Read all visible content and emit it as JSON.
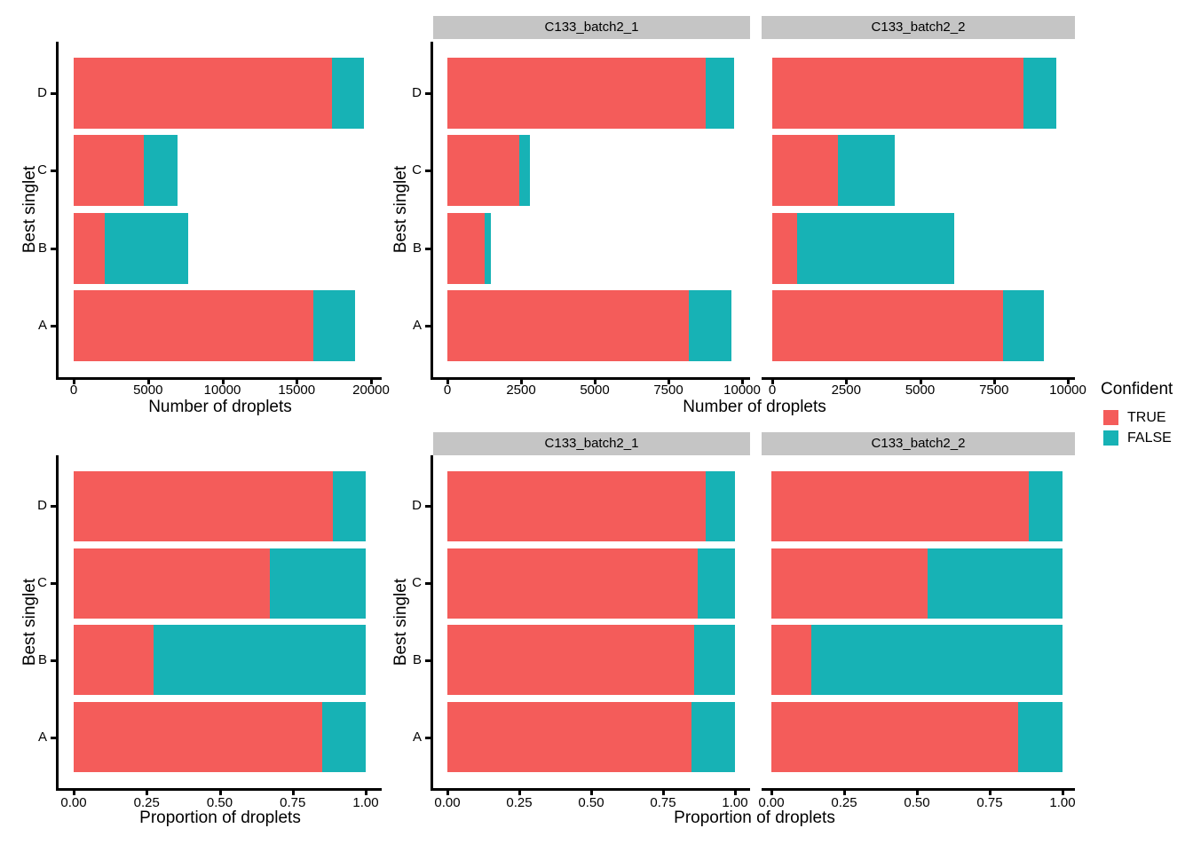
{
  "figure": {
    "legend": {
      "title": "Confident",
      "items": [
        {
          "label": "TRUE",
          "color": "#F45C5A"
        },
        {
          "label": "FALSE",
          "color": "#17B2B5"
        }
      ]
    },
    "colors": {
      "confident_true": "#F45C5A",
      "confident_false": "#17B2B5",
      "facet_strip_bg": "#C5C5C5",
      "axis_line": "#000000",
      "text": "#000000"
    }
  },
  "chart_data": [
    {
      "id": "counts_all",
      "type": "bar",
      "orientation": "horizontal",
      "stacked": true,
      "facet_label": null,
      "xlabel": "Number of droplets",
      "ylabel": "Best singlet",
      "categories": [
        "A",
        "B",
        "C",
        "D"
      ],
      "category_order_top_to_bottom": [
        "D",
        "C",
        "B",
        "A"
      ],
      "series": [
        {
          "name": "TRUE",
          "values": [
            16100,
            2100,
            4700,
            17350
          ]
        },
        {
          "name": "FALSE",
          "values": [
            2850,
            5600,
            2300,
            2200
          ]
        }
      ],
      "xlim": [
        0,
        20000
      ],
      "xticks": [
        0,
        5000,
        10000,
        15000,
        20000
      ],
      "xtick_labels": [
        "0",
        "5000",
        "10000",
        "15000",
        "20000"
      ],
      "grid": false,
      "legend_title": "Confident"
    },
    {
      "id": "counts_C133_batch2_1",
      "type": "bar",
      "orientation": "horizontal",
      "stacked": true,
      "facet_label": "C133_batch2_1",
      "xlabel": "Number of droplets",
      "ylabel": "Best singlet",
      "categories": [
        "A",
        "B",
        "C",
        "D"
      ],
      "category_order_top_to_bottom": [
        "D",
        "C",
        "B",
        "A"
      ],
      "series": [
        {
          "name": "TRUE",
          "values": [
            8200,
            1270,
            2430,
            8760
          ]
        },
        {
          "name": "FALSE",
          "values": [
            1450,
            210,
            360,
            980
          ]
        }
      ],
      "xlim": [
        0,
        10000
      ],
      "xticks": [
        0,
        2500,
        5000,
        7500,
        10000
      ],
      "xtick_labels": [
        "0",
        "2500",
        "5000",
        "7500",
        "10000"
      ],
      "grid": false,
      "legend_title": "Confident"
    },
    {
      "id": "counts_C133_batch2_2",
      "type": "bar",
      "orientation": "horizontal",
      "stacked": true,
      "facet_label": "C133_batch2_2",
      "xlabel": "Number of droplets",
      "ylabel": null,
      "categories": [
        "A",
        "B",
        "C",
        "D"
      ],
      "category_order_top_to_bottom": [
        "D",
        "C",
        "B",
        "A"
      ],
      "series": [
        {
          "name": "TRUE",
          "values": [
            7800,
            850,
            2230,
            8500
          ]
        },
        {
          "name": "FALSE",
          "values": [
            1400,
            5300,
            1920,
            1100
          ]
        }
      ],
      "xlim": [
        0,
        10000
      ],
      "xticks": [
        0,
        2500,
        5000,
        7500,
        10000
      ],
      "xtick_labels": [
        "0",
        "2500",
        "5000",
        "7500",
        "10000"
      ],
      "grid": false,
      "legend_title": "Confident"
    },
    {
      "id": "proportions_all",
      "type": "bar",
      "orientation": "horizontal",
      "stacked": true,
      "facet_label": null,
      "xlabel": "Proportion of droplets",
      "ylabel": "Best singlet",
      "categories": [
        "A",
        "B",
        "C",
        "D"
      ],
      "category_order_top_to_bottom": [
        "D",
        "C",
        "B",
        "A"
      ],
      "series": [
        {
          "name": "TRUE",
          "values": [
            0.85,
            0.273,
            0.671,
            0.888
          ]
        },
        {
          "name": "FALSE",
          "values": [
            0.15,
            0.727,
            0.329,
            0.112
          ]
        }
      ],
      "xlim": [
        0,
        1
      ],
      "xticks": [
        0,
        0.25,
        0.5,
        0.75,
        1
      ],
      "xtick_labels": [
        "0.00",
        "0.25",
        "0.50",
        "0.75",
        "1.00"
      ],
      "grid": false,
      "legend_title": "Confident"
    },
    {
      "id": "proportions_C133_batch2_1",
      "type": "bar",
      "orientation": "horizontal",
      "stacked": true,
      "facet_label": "C133_batch2_1",
      "xlabel": "Proportion of droplets",
      "ylabel": "Best singlet",
      "categories": [
        "A",
        "B",
        "C",
        "D"
      ],
      "category_order_top_to_bottom": [
        "D",
        "C",
        "B",
        "A"
      ],
      "series": [
        {
          "name": "TRUE",
          "values": [
            0.85,
            0.858,
            0.871,
            0.899
          ]
        },
        {
          "name": "FALSE",
          "values": [
            0.15,
            0.142,
            0.129,
            0.101
          ]
        }
      ],
      "xlim": [
        0,
        1
      ],
      "xticks": [
        0,
        0.25,
        0.5,
        0.75,
        1
      ],
      "xtick_labels": [
        "0.00",
        "0.25",
        "0.50",
        "0.75",
        "1.00"
      ],
      "grid": false,
      "legend_title": "Confident"
    },
    {
      "id": "proportions_C133_batch2_2",
      "type": "bar",
      "orientation": "horizontal",
      "stacked": true,
      "facet_label": "C133_batch2_2",
      "xlabel": "Proportion of droplets",
      "ylabel": null,
      "categories": [
        "A",
        "B",
        "C",
        "D"
      ],
      "category_order_top_to_bottom": [
        "D",
        "C",
        "B",
        "A"
      ],
      "series": [
        {
          "name": "TRUE",
          "values": [
            0.848,
            0.138,
            0.537,
            0.885
          ]
        },
        {
          "name": "FALSE",
          "values": [
            0.152,
            0.862,
            0.463,
            0.115
          ]
        }
      ],
      "xlim": [
        0,
        1
      ],
      "xticks": [
        0,
        0.25,
        0.5,
        0.75,
        1
      ],
      "xtick_labels": [
        "0.00",
        "0.25",
        "0.50",
        "0.75",
        "1.00"
      ],
      "grid": false,
      "legend_title": "Confident"
    }
  ]
}
